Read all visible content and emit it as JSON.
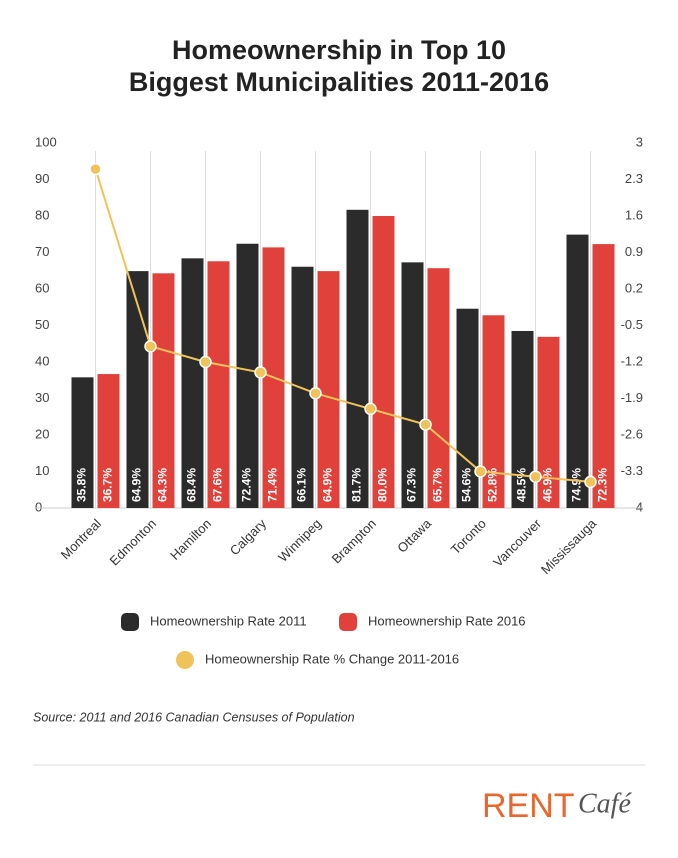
{
  "chart_data": {
    "type": "bar",
    "title": [
      "Homeownership in Top 10",
      "Biggest Municipalities 2011-2016"
    ],
    "categories": [
      "Montreal",
      "Edmonton",
      "Hamilton",
      "Calgary",
      "Winnipeg",
      "Brampton",
      "Ottawa",
      "Toronto",
      "Vancouver",
      "Mississauga"
    ],
    "series": [
      {
        "name": "Homeownership Rate 2011",
        "color": "#2b2b2b",
        "type": "bar",
        "values": [
          35.8,
          64.9,
          68.4,
          72.4,
          66.1,
          81.7,
          67.3,
          54.6,
          48.5,
          74.9
        ],
        "value_labels": [
          "35.8%",
          "64.9%",
          "68.4%",
          "72.4%",
          "66.1%",
          "81.7%",
          "67.3%",
          "54.6%",
          "48.5%",
          "74.9%"
        ]
      },
      {
        "name": "Homeownership Rate 2016",
        "color": "#e0413a",
        "type": "bar",
        "values": [
          36.7,
          64.3,
          67.6,
          71.4,
          64.9,
          80.0,
          65.7,
          52.8,
          46.9,
          72.3
        ],
        "value_labels": [
          "36.7%",
          "64.3%",
          "67.6%",
          "71.4%",
          "64.9%",
          "80.0%",
          "65.7%",
          "52.8%",
          "46.9%",
          "72.3%"
        ]
      },
      {
        "name": "Homeownership Rate % Change 2011-2016",
        "color": "#f0c35a",
        "type": "line",
        "axis": "y2",
        "values": [
          2.5,
          -0.9,
          -1.2,
          -1.4,
          -1.8,
          -2.1,
          -2.4,
          -3.3,
          -3.4,
          -3.5
        ]
      }
    ],
    "ylim": [
      0,
      100
    ],
    "yticks": [
      0,
      10,
      20,
      30,
      40,
      50,
      60,
      70,
      80,
      90,
      100
    ],
    "y2lim": [
      -4,
      3
    ],
    "y2ticks": [
      -4,
      -3.3,
      -2.6,
      -1.9,
      -1.2,
      -0.5,
      0.2,
      0.9,
      1.6,
      2.3,
      3
    ],
    "grid": true,
    "source": "Source: 2011 and 2016 Canadian Censuses of Population"
  },
  "logo": {
    "part1": "RENT",
    "part2": "Café"
  }
}
